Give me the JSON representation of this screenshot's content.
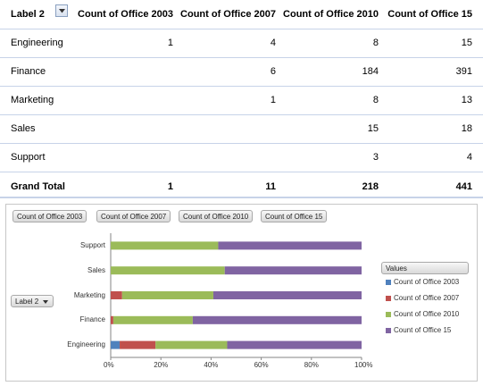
{
  "pivot": {
    "headers": [
      "Label 2",
      "Count of Office 2003",
      "Count of Office 2007",
      "Count of Office 2010",
      "Count of Office 15"
    ],
    "rows": [
      {
        "label": "Engineering",
        "values": [
          "1",
          "4",
          "8",
          "15"
        ]
      },
      {
        "label": "Finance",
        "values": [
          "",
          "6",
          "184",
          "391"
        ]
      },
      {
        "label": "Marketing",
        "values": [
          "",
          "1",
          "8",
          "13"
        ]
      },
      {
        "label": "Sales",
        "values": [
          "",
          "",
          "15",
          "18"
        ]
      },
      {
        "label": "Support",
        "values": [
          "",
          "",
          "3",
          "4"
        ]
      }
    ],
    "grand_total": {
      "label": "Grand Total",
      "values": [
        "1",
        "11",
        "218",
        "441"
      ]
    }
  },
  "chart_buttons": {
    "series": [
      "Count of Office 2003",
      "Count of Office 2007",
      "Count of Office 2010",
      "Count of Office 15"
    ],
    "row_field": "Label 2",
    "legend_title": "Values"
  },
  "chart_data": {
    "type": "bar",
    "orientation": "horizontal",
    "stacked": "100%",
    "categories": [
      "Engineering",
      "Finance",
      "Marketing",
      "Sales",
      "Support"
    ],
    "series": [
      {
        "name": "Count of Office 2003",
        "color": "#4f81bd",
        "values": [
          1,
          0,
          0,
          0,
          0
        ]
      },
      {
        "name": "Count of Office 2007",
        "color": "#c0504d",
        "values": [
          4,
          6,
          1,
          0,
          0
        ]
      },
      {
        "name": "Count of Office 2010",
        "color": "#9bbb59",
        "values": [
          8,
          184,
          8,
          15,
          3
        ]
      },
      {
        "name": "Count of Office 15",
        "color": "#8064a2",
        "values": [
          15,
          391,
          13,
          18,
          4
        ]
      }
    ],
    "x_ticks": [
      "0%",
      "20%",
      "40%",
      "60%",
      "80%",
      "100%"
    ],
    "xlim": [
      0,
      1
    ],
    "legend": "right",
    "grid": false
  }
}
